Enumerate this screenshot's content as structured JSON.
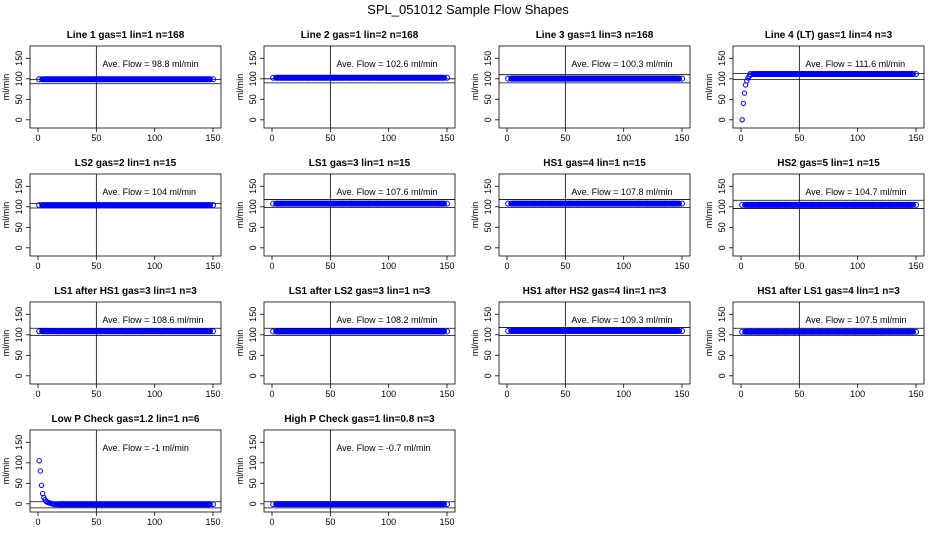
{
  "figure": {
    "title": "SPL_051012  Sample Flow Shapes"
  },
  "chart_data": [
    {
      "type": "scatter",
      "title": "Line 1 gas=1 lin=1 n=168",
      "ylabel": "ml/min",
      "xlim": [
        0,
        150
      ],
      "ylim": [
        -20,
        180
      ],
      "x_ticks": [
        0,
        50,
        100,
        150
      ],
      "y_ticks": [
        0,
        50,
        100,
        150
      ],
      "vline": 50,
      "hlines": [
        88,
        98
      ],
      "annotation": "Ave. Flow = 98.8  ml/min",
      "point_color": "#0000ff",
      "series": [
        {
          "x": [
            1,
            150
          ],
          "y": [
            98.8,
            98.8
          ],
          "fill": "band"
        }
      ]
    },
    {
      "type": "scatter",
      "title": "Line 2 gas=1 lin=2 n=168",
      "ylabel": "ml/min",
      "xlim": [
        0,
        150
      ],
      "ylim": [
        -20,
        180
      ],
      "x_ticks": [
        0,
        50,
        100,
        150
      ],
      "y_ticks": [
        0,
        50,
        100,
        150
      ],
      "vline": 50,
      "hlines": [
        90,
        100
      ],
      "annotation": "Ave. Flow = 102.6  ml/min",
      "point_color": "#0000ff",
      "series": [
        {
          "x": [
            1,
            150
          ],
          "y": [
            102.6,
            102.6
          ],
          "fill": "band"
        }
      ]
    },
    {
      "type": "scatter",
      "title": "Line 3 gas=1 lin=3 n=168",
      "ylabel": "ml/min",
      "xlim": [
        0,
        150
      ],
      "ylim": [
        -20,
        180
      ],
      "x_ticks": [
        0,
        50,
        100,
        150
      ],
      "y_ticks": [
        0,
        50,
        100,
        150
      ],
      "vline": 50,
      "hlines": [
        90,
        110
      ],
      "annotation": "Ave. Flow = 100.3  ml/min",
      "point_color": "#0000ff",
      "series": [
        {
          "x": [
            1,
            150
          ],
          "y": [
            100.3,
            100.3
          ],
          "fill": "band"
        }
      ]
    },
    {
      "type": "scatter",
      "title": "Line 4 (LT) gas=1 lin=4 n=3",
      "ylabel": "ml/min",
      "xlim": [
        0,
        150
      ],
      "ylim": [
        -20,
        180
      ],
      "x_ticks": [
        0,
        50,
        100,
        150
      ],
      "y_ticks": [
        0,
        50,
        100,
        150
      ],
      "vline": 50,
      "hlines": [
        98,
        113
      ],
      "annotation": "Ave. Flow = 111.6  ml/min",
      "point_color": "#0000ff",
      "series": [
        {
          "x": [
            1,
            2,
            3,
            4,
            5,
            6,
            7,
            8
          ],
          "y": [
            0,
            40,
            65,
            85,
            95,
            102,
            106,
            109
          ]
        },
        {
          "x": [
            8,
            150
          ],
          "y": [
            111.6,
            111.6
          ],
          "fill": "band"
        }
      ]
    },
    {
      "type": "scatter",
      "title": "LS2 gas=2 lin=1 n=15",
      "ylabel": "ml/min",
      "xlim": [
        0,
        150
      ],
      "ylim": [
        -20,
        180
      ],
      "x_ticks": [
        0,
        50,
        100,
        150
      ],
      "y_ticks": [
        0,
        50,
        100,
        150
      ],
      "vline": 50,
      "hlines": [
        97,
        108
      ],
      "annotation": "Ave. Flow = 104  ml/min",
      "point_color": "#0000ff",
      "series": [
        {
          "x": [
            1,
            150
          ],
          "y": [
            104,
            104
          ],
          "fill": "band"
        }
      ]
    },
    {
      "type": "scatter",
      "title": "LS1 gas=3 lin=1 n=15",
      "ylabel": "ml/min",
      "xlim": [
        0,
        150
      ],
      "ylim": [
        -20,
        180
      ],
      "x_ticks": [
        0,
        50,
        100,
        150
      ],
      "y_ticks": [
        0,
        50,
        100,
        150
      ],
      "vline": 50,
      "hlines": [
        98,
        118
      ],
      "annotation": "Ave. Flow = 107.6  ml/min",
      "point_color": "#0000ff",
      "series": [
        {
          "x": [
            1,
            150
          ],
          "y": [
            107.6,
            107.6
          ],
          "fill": "band"
        }
      ]
    },
    {
      "type": "scatter",
      "title": "HS1 gas=4 lin=1 n=15",
      "ylabel": "ml/min",
      "xlim": [
        0,
        150
      ],
      "ylim": [
        -20,
        180
      ],
      "x_ticks": [
        0,
        50,
        100,
        150
      ],
      "y_ticks": [
        0,
        50,
        100,
        150
      ],
      "vline": 50,
      "hlines": [
        98,
        118
      ],
      "annotation": "Ave. Flow = 107.8  ml/min",
      "point_color": "#0000ff",
      "series": [
        {
          "x": [
            1,
            150
          ],
          "y": [
            107.8,
            107.8
          ],
          "fill": "band"
        }
      ]
    },
    {
      "type": "scatter",
      "title": "HS2 gas=5 lin=1 n=15",
      "ylabel": "ml/min",
      "xlim": [
        0,
        150
      ],
      "ylim": [
        -20,
        180
      ],
      "x_ticks": [
        0,
        50,
        100,
        150
      ],
      "y_ticks": [
        0,
        50,
        100,
        150
      ],
      "vline": 50,
      "hlines": [
        96,
        116
      ],
      "annotation": "Ave. Flow = 104.7  ml/min",
      "point_color": "#0000ff",
      "series": [
        {
          "x": [
            1,
            150
          ],
          "y": [
            104.7,
            104.7
          ],
          "fill": "band"
        }
      ]
    },
    {
      "type": "scatter",
      "title": "LS1 after HS1 gas=3 lin=1 n=3",
      "ylabel": "ml/min",
      "xlim": [
        0,
        150
      ],
      "ylim": [
        -20,
        180
      ],
      "x_ticks": [
        0,
        50,
        100,
        150
      ],
      "y_ticks": [
        0,
        50,
        100,
        150
      ],
      "vline": 50,
      "hlines": [
        98,
        116
      ],
      "annotation": "Ave. Flow = 108.6  ml/min",
      "point_color": "#0000ff",
      "series": [
        {
          "x": [
            1,
            150
          ],
          "y": [
            108.6,
            108.6
          ],
          "fill": "band"
        }
      ]
    },
    {
      "type": "scatter",
      "title": "LS1 after LS2 gas=3 lin=1 n=3",
      "ylabel": "ml/min",
      "xlim": [
        0,
        150
      ],
      "ylim": [
        -20,
        180
      ],
      "x_ticks": [
        0,
        50,
        100,
        150
      ],
      "y_ticks": [
        0,
        50,
        100,
        150
      ],
      "vline": 50,
      "hlines": [
        98,
        116
      ],
      "annotation": "Ave. Flow = 108.2  ml/min",
      "point_color": "#0000ff",
      "series": [
        {
          "x": [
            1,
            150
          ],
          "y": [
            108.2,
            108.2
          ],
          "fill": "band"
        }
      ]
    },
    {
      "type": "scatter",
      "title": "HS1 after HS2 gas=4 lin=1 n=3",
      "ylabel": "ml/min",
      "xlim": [
        0,
        150
      ],
      "ylim": [
        -20,
        180
      ],
      "x_ticks": [
        0,
        50,
        100,
        150
      ],
      "y_ticks": [
        0,
        50,
        100,
        150
      ],
      "vline": 50,
      "hlines": [
        98,
        118
      ],
      "annotation": "Ave. Flow = 109.3  ml/min",
      "point_color": "#0000ff",
      "series": [
        {
          "x": [
            1,
            150
          ],
          "y": [
            109.3,
            109.3
          ],
          "fill": "band"
        }
      ]
    },
    {
      "type": "scatter",
      "title": "HS1 after LS1 gas=4 lin=1 n=3",
      "ylabel": "ml/min",
      "xlim": [
        0,
        150
      ],
      "ylim": [
        -20,
        180
      ],
      "x_ticks": [
        0,
        50,
        100,
        150
      ],
      "y_ticks": [
        0,
        50,
        100,
        150
      ],
      "vline": 50,
      "hlines": [
        98,
        116
      ],
      "annotation": "Ave. Flow = 107.5  ml/min",
      "point_color": "#0000ff",
      "series": [
        {
          "x": [
            1,
            150
          ],
          "y": [
            107.5,
            107.5
          ],
          "fill": "band"
        }
      ]
    },
    {
      "type": "scatter",
      "title": "Low P Check gas=1.2 lin=1 n=6",
      "ylabel": "ml/min",
      "xlim": [
        0,
        150
      ],
      "ylim": [
        -20,
        180
      ],
      "x_ticks": [
        0,
        50,
        100,
        150
      ],
      "y_ticks": [
        0,
        50,
        100,
        150
      ],
      "vline": 50,
      "hlines": [
        -10,
        5
      ],
      "annotation": "Ave. Flow = -1  ml/min",
      "point_color": "#0000ff",
      "series": [
        {
          "x": [
            1,
            2,
            3,
            4,
            5,
            6,
            7,
            8,
            9,
            10,
            11,
            12,
            13,
            14
          ],
          "y": [
            105,
            80,
            45,
            25,
            15,
            10,
            6,
            4,
            3,
            2,
            1,
            0,
            -0.5,
            -1
          ]
        },
        {
          "x": [
            14,
            150
          ],
          "y": [
            -1,
            -1
          ],
          "fill": "band"
        }
      ]
    },
    {
      "type": "scatter",
      "title": "High P Check gas=1 lin=0.8 n=3",
      "ylabel": "ml/min",
      "xlim": [
        0,
        150
      ],
      "ylim": [
        -20,
        180
      ],
      "x_ticks": [
        0,
        50,
        100,
        150
      ],
      "y_ticks": [
        0,
        50,
        100,
        150
      ],
      "vline": 50,
      "hlines": [
        -10,
        5
      ],
      "annotation": "Ave. Flow = -0.7  ml/min",
      "point_color": "#0000ff",
      "series": [
        {
          "x": [
            1,
            150
          ],
          "y": [
            -0.7,
            -0.7
          ],
          "fill": "band"
        }
      ]
    }
  ]
}
